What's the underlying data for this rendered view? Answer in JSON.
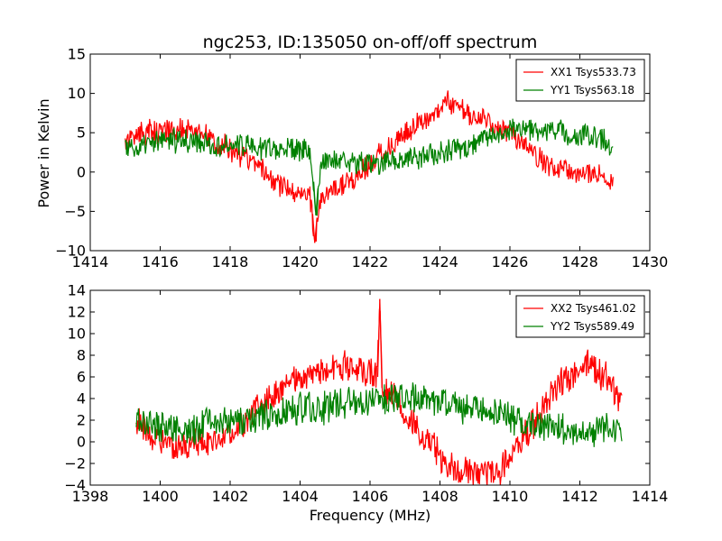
{
  "chart_data": [
    {
      "type": "line",
      "title": "ngc253, ID:135050 on-off/off spectrum",
      "xlabel": "",
      "ylabel": "Power in Kelvin",
      "xlim": [
        1414,
        1430
      ],
      "ylim": [
        -10,
        15
      ],
      "xticks": [
        "1414",
        "1416",
        "1418",
        "1420",
        "1422",
        "1424",
        "1426",
        "1428",
        "1430"
      ],
      "yticks": [
        "-10",
        "-5",
        "0",
        "5",
        "10",
        "15"
      ],
      "grid": false,
      "legend_placement": "top-right",
      "series": [
        {
          "name": "XX1 Tsys533.73",
          "color": "#ff0000",
          "x": [
            1415.0,
            1415.5,
            1416.0,
            1416.5,
            1417.0,
            1417.5,
            1418.0,
            1418.5,
            1419.0,
            1419.5,
            1420.0,
            1420.3,
            1420.42,
            1420.55,
            1421.0,
            1421.5,
            1422.0,
            1422.5,
            1423.0,
            1423.5,
            1424.0,
            1424.2,
            1424.5,
            1425.0,
            1425.5,
            1426.0,
            1426.5,
            1427.0,
            1427.5,
            1428.0,
            1428.5,
            1428.95
          ],
          "y": [
            4,
            5,
            5.2,
            5.5,
            5,
            4.2,
            3,
            1.5,
            0,
            -2,
            -2.5,
            -3.5,
            -9,
            -4,
            -2,
            -1,
            1,
            3,
            5,
            6.5,
            7.5,
            9.5,
            8,
            7.2,
            6,
            5,
            3,
            1,
            0.5,
            -0.5,
            0,
            -1
          ]
        },
        {
          "name": "YY1 Tsys563.18",
          "color": "#008000",
          "x": [
            1415.0,
            1415.5,
            1416.0,
            1416.5,
            1417.0,
            1417.5,
            1418.0,
            1418.5,
            1419.0,
            1419.5,
            1420.0,
            1420.3,
            1420.45,
            1420.6,
            1421.0,
            1421.5,
            1422.0,
            1422.5,
            1423.0,
            1423.5,
            1424.0,
            1424.5,
            1425.0,
            1425.5,
            1426.0,
            1426.5,
            1427.0,
            1427.5,
            1428.0,
            1428.5,
            1428.95
          ],
          "y": [
            3,
            3,
            4,
            4,
            3.8,
            3.5,
            3.5,
            3.2,
            3,
            3,
            3,
            2.5,
            -5.5,
            1,
            1.5,
            1.5,
            1,
            1.2,
            1.5,
            2,
            2.5,
            3,
            3.5,
            5,
            5.5,
            5.5,
            5.5,
            5,
            4.5,
            4.5,
            3
          ]
        }
      ]
    },
    {
      "type": "line",
      "title": "",
      "xlabel": "Frequency (MHz)",
      "ylabel": "",
      "xlim": [
        1398,
        1414
      ],
      "ylim": [
        -4,
        14
      ],
      "xticks": [
        "1398",
        "1400",
        "1402",
        "1404",
        "1406",
        "1408",
        "1410",
        "1412",
        "1414"
      ],
      "yticks": [
        "-4",
        "-2",
        "0",
        "2",
        "4",
        "6",
        "8",
        "10",
        "12",
        "14"
      ],
      "grid": false,
      "legend_placement": "top-right",
      "series": [
        {
          "name": "XX2 Tsys461.02",
          "color": "#ff0000",
          "x": [
            1399.3,
            1399.8,
            1400.3,
            1400.8,
            1401.3,
            1401.8,
            1402.3,
            1402.8,
            1403.3,
            1403.8,
            1404.3,
            1404.8,
            1405.3,
            1405.8,
            1406.2,
            1406.28,
            1406.35,
            1406.7,
            1407.2,
            1407.7,
            1408.2,
            1408.7,
            1409.2,
            1409.7,
            1410.2,
            1410.7,
            1411.2,
            1411.7,
            1412.2,
            1412.7,
            1413.2
          ],
          "y": [
            2,
            0.5,
            -0.5,
            -0.5,
            0,
            0.5,
            1.5,
            3,
            4.5,
            5.5,
            6,
            6.5,
            7,
            6.5,
            6,
            13.2,
            5,
            4,
            2,
            0,
            -2,
            -3,
            -3,
            -2.5,
            -0.5,
            2,
            4.5,
            6,
            7,
            6,
            4
          ]
        },
        {
          "name": "YY2 Tsys589.49",
          "color": "#008000",
          "x": [
            1399.3,
            1399.8,
            1400.3,
            1400.8,
            1401.3,
            1401.8,
            1402.3,
            1402.8,
            1403.3,
            1403.8,
            1404.3,
            1404.8,
            1405.3,
            1405.8,
            1406.3,
            1406.8,
            1407.3,
            1407.8,
            1408.3,
            1408.8,
            1409.3,
            1409.8,
            1410.3,
            1410.8,
            1411.3,
            1411.8,
            1412.3,
            1412.8,
            1413.2
          ],
          "y": [
            2,
            1.5,
            1.5,
            1.2,
            1.5,
            1.8,
            2,
            2.2,
            2.5,
            3,
            3,
            3.2,
            3.5,
            3.8,
            4,
            4,
            4,
            3.8,
            3.5,
            3.2,
            3,
            2.5,
            2,
            1.5,
            1.2,
            1,
            1,
            1.5,
            1
          ]
        }
      ]
    }
  ]
}
